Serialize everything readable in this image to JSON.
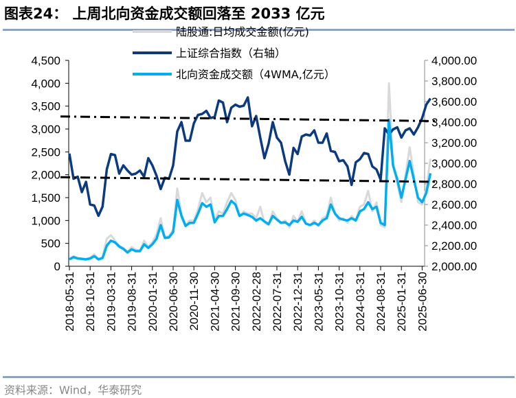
{
  "title": "图表24： 上周北向资金成交额回落至 2033 亿元",
  "source": "资料来源：Wind，华泰研究",
  "chart_data": {
    "type": "line",
    "title": "图表24： 上周北向资金成交额回落至 2033 亿元",
    "x_tick_labels": [
      "2018-05-31",
      "2018-10-31",
      "2019-03-31",
      "2019-08-31",
      "2020-01-31",
      "2020-06-30",
      "2020-11-30",
      "2021-04-30",
      "2021-09-30",
      "2022-02-28",
      "2022-07-31",
      "2022-12-31",
      "2023-05-31",
      "2023-10-31",
      "2024-03-31",
      "2024-08-31",
      "2025-01-31",
      "2025-06-30"
    ],
    "left_axis": {
      "range": [
        0,
        4500
      ],
      "ticks": [
        "0",
        "500",
        "1,000",
        "1,500",
        "2,000",
        "2,500",
        "3,000",
        "3,500",
        "4,000",
        "4,500"
      ]
    },
    "right_axis": {
      "range": [
        2000,
        4000
      ],
      "ticks": [
        "2,000.00",
        "2,200.00",
        "2,400.00",
        "2,600.00",
        "2,800.00",
        "3,000.00",
        "3,200.00",
        "3,400.00",
        "3,600.00",
        "3,800.00",
        "4,000.00"
      ]
    },
    "legend_position": "top-center",
    "grid": false,
    "x": [
      "2018-05",
      "2018-06",
      "2018-07",
      "2018-08",
      "2018-09",
      "2018-10",
      "2018-11",
      "2018-12",
      "2019-01",
      "2019-02",
      "2019-03",
      "2019-04",
      "2019-05",
      "2019-06",
      "2019-07",
      "2019-08",
      "2019-09",
      "2019-10",
      "2019-11",
      "2019-12",
      "2020-01",
      "2020-02",
      "2020-03",
      "2020-04",
      "2020-05",
      "2020-06",
      "2020-07",
      "2020-08",
      "2020-09",
      "2020-10",
      "2020-11",
      "2020-12",
      "2021-01",
      "2021-02",
      "2021-03",
      "2021-04",
      "2021-05",
      "2021-06",
      "2021-07",
      "2021-08",
      "2021-09",
      "2021-10",
      "2021-11",
      "2021-12",
      "2022-01",
      "2022-02",
      "2022-03",
      "2022-04",
      "2022-05",
      "2022-06",
      "2022-07",
      "2022-08",
      "2022-09",
      "2022-10",
      "2022-11",
      "2022-12",
      "2023-01",
      "2023-02",
      "2023-03",
      "2023-04",
      "2023-05",
      "2023-06",
      "2023-07",
      "2023-08",
      "2023-09",
      "2023-10",
      "2023-11",
      "2023-12",
      "2024-01",
      "2024-02",
      "2024-03",
      "2024-04",
      "2024-05",
      "2024-06",
      "2024-07",
      "2024-08",
      "2024-09",
      "2024-10",
      "2024-11",
      "2024-12",
      "2025-01",
      "2025-02",
      "2025-03",
      "2025-04",
      "2025-05",
      "2025-06",
      "2025-07",
      "2025-08"
    ],
    "series": [
      {
        "name": "陆股通:日均成交金额(亿元)",
        "axis": "left",
        "color": "#d9d9d9",
        "values": [
          160,
          220,
          180,
          170,
          160,
          190,
          260,
          160,
          200,
          600,
          680,
          560,
          450,
          400,
          320,
          420,
          360,
          350,
          560,
          430,
          520,
          700,
          1050,
          640,
          660,
          800,
          1700,
          1150,
          900,
          1000,
          1000,
          1250,
          1600,
          1400,
          1500,
          1000,
          1200,
          1150,
          1400,
          1600,
          1450,
          1100,
          1200,
          1150,
          1150,
          1050,
          1300,
          950,
          900,
          1200,
          1050,
          950,
          1000,
          850,
          1100,
          980,
          1200,
          950,
          900,
          1000,
          880,
          1050,
          1100,
          1500,
          1150,
          1000,
          1050,
          950,
          1100,
          1000,
          1300,
          1350,
          1650,
          1200,
          1400,
          900,
          850,
          4000,
          2200,
          1800,
          1400,
          2000,
          2600,
          2000,
          1400,
          1350,
          1700,
          2350
        ]
      },
      {
        "name": "上证综合指数（右轴）",
        "axis": "right",
        "color": "#0b3a7e",
        "values": [
          3095,
          2850,
          2870,
          2720,
          2820,
          2600,
          2590,
          2490,
          2580,
          2940,
          3090,
          3080,
          2900,
          2980,
          2930,
          2890,
          2900,
          2930,
          2870,
          3050,
          2980,
          2880,
          2750,
          2860,
          2850,
          2980,
          3310,
          3400,
          3220,
          3220,
          3390,
          3470,
          3480,
          3510,
          3440,
          3450,
          3610,
          3590,
          3400,
          3540,
          3570,
          3550,
          3560,
          3640,
          3360,
          3460,
          3250,
          3050,
          3190,
          3400,
          3250,
          3200,
          3020,
          2890,
          3150,
          3090,
          3260,
          3280,
          3270,
          3320,
          3200,
          3200,
          3290,
          3120,
          3110,
          3020,
          3030,
          2970,
          2790,
          3010,
          3040,
          3100,
          3090,
          2970,
          2940,
          2840,
          3340,
          3280,
          3330,
          3350,
          3250,
          3320,
          3340,
          3280,
          3350,
          3440,
          3570,
          3630
        ]
      },
      {
        "name": "北向资金成交额（4WMA,亿元）",
        "axis": "left",
        "color": "#00aeef",
        "values": [
          150,
          200,
          170,
          160,
          150,
          170,
          220,
          150,
          180,
          450,
          560,
          520,
          430,
          380,
          300,
          370,
          330,
          330,
          480,
          400,
          480,
          600,
          900,
          620,
          630,
          750,
          1450,
          1100,
          880,
          950,
          950,
          1150,
          1380,
          1300,
          1350,
          960,
          1100,
          1100,
          1250,
          1430,
          1350,
          1100,
          1150,
          1120,
          1080,
          1000,
          1050,
          980,
          920,
          1100,
          1020,
          950,
          960,
          900,
          1000,
          970,
          1080,
          930,
          900,
          950,
          900,
          1000,
          1050,
          1350,
          1150,
          1050,
          1020,
          1000,
          1050,
          1000,
          1200,
          1250,
          1400,
          1250,
          1300,
          950,
          900,
          3200,
          2200,
          1900,
          1500,
          1900,
          2300,
          1900,
          1500,
          1400,
          1600,
          2033
        ]
      }
    ],
    "reference_lines": [
      {
        "axis": "right",
        "style": "dash-dot",
        "from": [
          "2018-05",
          3455
        ],
        "to": [
          "2025-08",
          3410
        ]
      },
      {
        "axis": "right",
        "style": "dash-dot",
        "from": [
          "2018-05",
          2865
        ],
        "to": [
          "2025-08",
          2820
        ]
      }
    ]
  }
}
